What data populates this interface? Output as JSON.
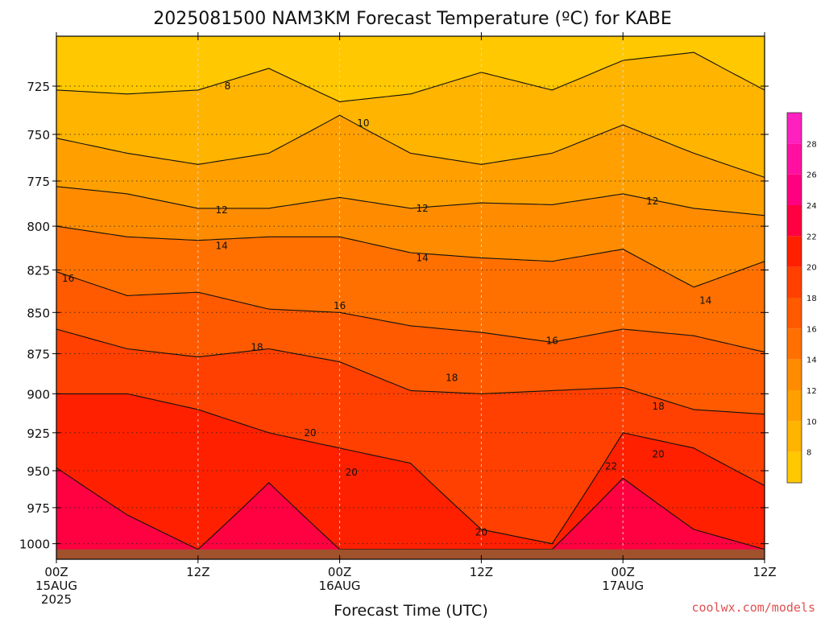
{
  "chart_data": {
    "type": "heatmap",
    "title": "2025081500 NAM3KM Forecast Temperature (ºC) for KABE",
    "xlabel": "Forecast Time (UTC)",
    "ylabel": "",
    "credit": "coolwx.com/models",
    "x_ticks": [
      {
        "hour": 0,
        "lines": [
          "00Z",
          "15AUG",
          "2025"
        ]
      },
      {
        "hour": 12,
        "lines": [
          "12Z"
        ]
      },
      {
        "hour": 24,
        "lines": [
          "00Z",
          "16AUG"
        ]
      },
      {
        "hour": 36,
        "lines": [
          "12Z"
        ]
      },
      {
        "hour": 48,
        "lines": [
          "00Z",
          "17AUG"
        ]
      },
      {
        "hour": 60,
        "lines": [
          "12Z"
        ]
      }
    ],
    "xlim_hours": [
      0,
      60
    ],
    "y_ticks": [
      725,
      750,
      775,
      800,
      825,
      850,
      875,
      900,
      925,
      950,
      975,
      1000
    ],
    "ylim_hpa": [
      700,
      1011
    ],
    "y_scale": "log-pressure",
    "grid": true,
    "surface_pressure_hpa": 1004,
    "colorbar": {
      "ticks": [
        8,
        10,
        12,
        14,
        16,
        18,
        20,
        22,
        24,
        26,
        28
      ],
      "range": [
        6,
        30
      ],
      "colors": [
        "#FFC800",
        "#FFB400",
        "#FFA000",
        "#FF8C00",
        "#FF7000",
        "#FF5A00",
        "#FF4000",
        "#FF2000",
        "#FF0040",
        "#FF0080",
        "#FF10A0",
        "#FF20C0"
      ]
    },
    "contour_levels": [
      8,
      10,
      12,
      14,
      16,
      18,
      20,
      22
    ],
    "isotherms": [
      {
        "temp": 8,
        "hour_points": [
          0,
          6,
          12,
          18,
          24,
          30,
          36,
          42,
          48,
          54,
          60
        ],
        "pressure_hpa": [
          727,
          729,
          727,
          716,
          733,
          729,
          718,
          727,
          712,
          708,
          727
        ]
      },
      {
        "temp": 10,
        "hour_points": [
          0,
          6,
          12,
          18,
          24,
          30,
          36,
          42,
          48,
          54,
          60
        ],
        "pressure_hpa": [
          752,
          760,
          766,
          760,
          740,
          760,
          766,
          760,
          745,
          760,
          773
        ]
      },
      {
        "temp": 12,
        "hour_points": [
          0,
          6,
          12,
          18,
          24,
          30,
          36,
          42,
          48,
          54,
          60
        ],
        "pressure_hpa": [
          778,
          782,
          790,
          790,
          784,
          790,
          787,
          788,
          782,
          790,
          794
        ]
      },
      {
        "temp": 14,
        "hour_points": [
          0,
          6,
          12,
          18,
          24,
          30,
          36,
          42,
          48,
          54,
          60
        ],
        "pressure_hpa": [
          800,
          806,
          808,
          806,
          806,
          815,
          818,
          820,
          813,
          835,
          820
        ]
      },
      {
        "temp": 16,
        "hour_points": [
          0,
          6,
          12,
          18,
          24,
          30,
          36,
          42,
          48,
          54,
          60
        ],
        "pressure_hpa": [
          826,
          840,
          838,
          848,
          850,
          858,
          862,
          868,
          860,
          864,
          874
        ]
      },
      {
        "temp": 18,
        "hour_points": [
          0,
          6,
          12,
          18,
          24,
          30,
          36,
          42,
          48,
          54,
          60
        ],
        "pressure_hpa": [
          860,
          872,
          877,
          872,
          880,
          898,
          900,
          898,
          896,
          910,
          913
        ]
      },
      {
        "temp": 20,
        "hour_points": [
          0,
          6,
          12,
          18,
          24,
          30,
          36,
          42,
          48,
          54,
          60
        ],
        "pressure_hpa": [
          900,
          900,
          910,
          925,
          935,
          945,
          990,
          1000,
          925,
          935,
          960
        ]
      },
      {
        "temp": 22,
        "hour_points": [
          0,
          6,
          12,
          18,
          24,
          30,
          36,
          42,
          48,
          54,
          60
        ],
        "pressure_hpa": [
          948,
          980,
          1004,
          958,
          1004,
          1004,
          1004,
          1004,
          955,
          990,
          1004
        ]
      }
    ],
    "contour_labels": [
      {
        "text": "8",
        "hour": 14.5,
        "pressure_hpa": 725
      },
      {
        "text": "10",
        "hour": 26.0,
        "pressure_hpa": 744
      },
      {
        "text": "12",
        "hour": 14.0,
        "pressure_hpa": 791
      },
      {
        "text": "12",
        "hour": 31.0,
        "pressure_hpa": 790
      },
      {
        "text": "12",
        "hour": 50.5,
        "pressure_hpa": 786
      },
      {
        "text": "14",
        "hour": 14.0,
        "pressure_hpa": 811
      },
      {
        "text": "14",
        "hour": 31.0,
        "pressure_hpa": 818
      },
      {
        "text": "14",
        "hour": 55.0,
        "pressure_hpa": 843
      },
      {
        "text": "16",
        "hour": 1.0,
        "pressure_hpa": 830
      },
      {
        "text": "16",
        "hour": 24.0,
        "pressure_hpa": 846
      },
      {
        "text": "16",
        "hour": 42.0,
        "pressure_hpa": 867
      },
      {
        "text": "18",
        "hour": 17.0,
        "pressure_hpa": 871
      },
      {
        "text": "18",
        "hour": 33.5,
        "pressure_hpa": 890
      },
      {
        "text": "18",
        "hour": 51.0,
        "pressure_hpa": 908
      },
      {
        "text": "20",
        "hour": 21.5,
        "pressure_hpa": 925
      },
      {
        "text": "20",
        "hour": 25.0,
        "pressure_hpa": 951
      },
      {
        "text": "20",
        "hour": 36.0,
        "pressure_hpa": 992
      },
      {
        "text": "20",
        "hour": 51.0,
        "pressure_hpa": 939
      },
      {
        "text": "22",
        "hour": 47.0,
        "pressure_hpa": 947
      }
    ]
  }
}
